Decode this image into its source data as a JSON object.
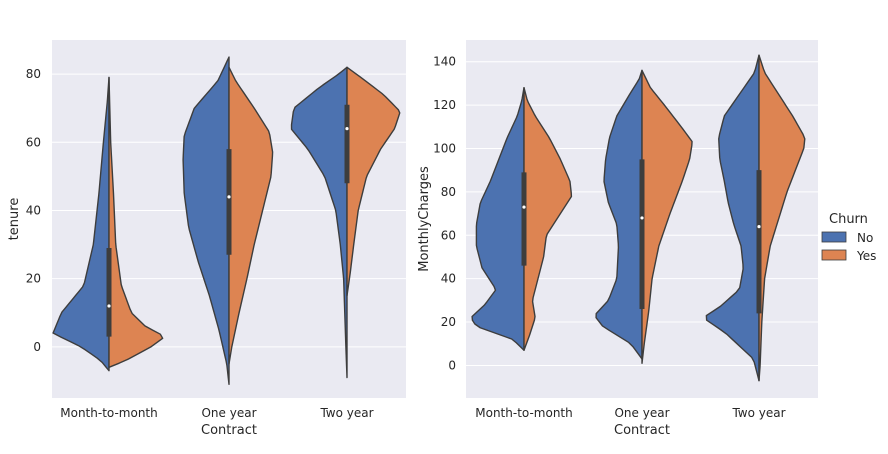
{
  "chart_data": [
    {
      "type": "violin",
      "split": true,
      "xlabel": "Contract",
      "ylabel": "tenure",
      "categories": [
        "Month-to-month",
        "One year",
        "Two year"
      ],
      "ylim": [
        -15,
        90
      ],
      "yticks": [
        0,
        20,
        40,
        60,
        80
      ],
      "grid": true,
      "series": [
        {
          "name": "No",
          "color": "#4C72B0",
          "range": [
            [
              -7,
              79
            ],
            [
              -11,
              85
            ],
            [
              -9,
              82
            ]
          ],
          "profile": [
            [
              [
                -7,
                0
              ],
              [
                -4,
                0.15
              ],
              [
                0,
                0.5
              ],
              [
                4,
                1.0
              ],
              [
                10,
                0.85
              ],
              [
                18,
                0.45
              ],
              [
                30,
                0.28
              ],
              [
                45,
                0.18
              ],
              [
                60,
                0.1
              ],
              [
                72,
                0.03
              ],
              [
                79,
                0
              ]
            ],
            [
              [
                -11,
                0
              ],
              [
                -5,
                0.04
              ],
              [
                5,
                0.18
              ],
              [
                15,
                0.35
              ],
              [
                25,
                0.55
              ],
              [
                35,
                0.72
              ],
              [
                45,
                0.8
              ],
              [
                55,
                0.82
              ],
              [
                62,
                0.8
              ],
              [
                70,
                0.62
              ],
              [
                78,
                0.2
              ],
              [
                85,
                0
              ]
            ],
            [
              [
                -9,
                0
              ],
              [
                0,
                0.02
              ],
              [
                10,
                0.04
              ],
              [
                20,
                0.06
              ],
              [
                30,
                0.12
              ],
              [
                40,
                0.2
              ],
              [
                50,
                0.4
              ],
              [
                58,
                0.7
              ],
              [
                64,
                1.0
              ],
              [
                70,
                0.95
              ],
              [
                76,
                0.5
              ],
              [
                80,
                0.15
              ],
              [
                82,
                0
              ]
            ]
          ]
        },
        {
          "name": "Yes",
          "color": "#DD8452",
          "range": [
            [
              -6,
              79
            ],
            [
              -5,
              82
            ],
            [
              15,
              82
            ]
          ],
          "profile": [
            [
              [
                -6,
                0
              ],
              [
                -4,
                0.3
              ],
              [
                0,
                0.75
              ],
              [
                3,
                1.0
              ],
              [
                6,
                0.65
              ],
              [
                10,
                0.4
              ],
              [
                18,
                0.22
              ],
              [
                30,
                0.12
              ],
              [
                45,
                0.08
              ],
              [
                60,
                0.03
              ],
              [
                79,
                0
              ]
            ],
            [
              [
                -5,
                0
              ],
              [
                0,
                0.05
              ],
              [
                10,
                0.18
              ],
              [
                20,
                0.32
              ],
              [
                30,
                0.45
              ],
              [
                40,
                0.6
              ],
              [
                50,
                0.75
              ],
              [
                57,
                0.78
              ],
              [
                63,
                0.72
              ],
              [
                70,
                0.45
              ],
              [
                78,
                0.12
              ],
              [
                82,
                0
              ]
            ],
            [
              [
                15,
                0
              ],
              [
                22,
                0.06
              ],
              [
                30,
                0.12
              ],
              [
                40,
                0.2
              ],
              [
                50,
                0.35
              ],
              [
                58,
                0.6
              ],
              [
                64,
                0.85
              ],
              [
                69,
                0.95
              ],
              [
                74,
                0.65
              ],
              [
                79,
                0.25
              ],
              [
                82,
                0
              ]
            ]
          ]
        }
      ],
      "box": [
        {
          "q1": 3,
          "median": 12,
          "q3": 29
        },
        {
          "q1": 27,
          "median": 44,
          "q3": 58
        },
        {
          "q1": 48,
          "median": 64,
          "q3": 71
        }
      ]
    },
    {
      "type": "violin",
      "split": true,
      "xlabel": "Contract",
      "ylabel": "MonthlyCharges",
      "categories": [
        "Month-to-month",
        "One year",
        "Two year"
      ],
      "ylim": [
        -15,
        150
      ],
      "yticks": [
        0,
        20,
        40,
        60,
        80,
        100,
        120,
        140
      ],
      "grid": true,
      "series": [
        {
          "name": "No",
          "color": "#4C72B0",
          "range": [
            [
              7,
              128
            ],
            [
              3,
              136
            ],
            [
              -7,
              143
            ]
          ],
          "profile": [
            [
              [
                7,
                0
              ],
              [
                12,
                0.2
              ],
              [
                18,
                0.85
              ],
              [
                22,
                0.95
              ],
              [
                28,
                0.7
              ],
              [
                35,
                0.5
              ],
              [
                45,
                0.75
              ],
              [
                55,
                0.85
              ],
              [
                65,
                0.85
              ],
              [
                75,
                0.78
              ],
              [
                85,
                0.6
              ],
              [
                95,
                0.45
              ],
              [
                105,
                0.3
              ],
              [
                115,
                0.12
              ],
              [
                122,
                0.04
              ],
              [
                128,
                0
              ]
            ],
            [
              [
                3,
                0
              ],
              [
                10,
                0.2
              ],
              [
                18,
                0.7
              ],
              [
                23,
                0.85
              ],
              [
                30,
                0.6
              ],
              [
                40,
                0.45
              ],
              [
                55,
                0.42
              ],
              [
                65,
                0.45
              ],
              [
                75,
                0.6
              ],
              [
                85,
                0.68
              ],
              [
                95,
                0.65
              ],
              [
                105,
                0.58
              ],
              [
                115,
                0.45
              ],
              [
                125,
                0.22
              ],
              [
                132,
                0.05
              ],
              [
                136,
                0
              ]
            ],
            [
              [
                -7,
                0
              ],
              [
                3,
                0.1
              ],
              [
                15,
                0.6
              ],
              [
                22,
                1.0
              ],
              [
                27,
                0.7
              ],
              [
                35,
                0.35
              ],
              [
                45,
                0.28
              ],
              [
                55,
                0.32
              ],
              [
                65,
                0.45
              ],
              [
                75,
                0.55
              ],
              [
                85,
                0.62
              ],
              [
                95,
                0.7
              ],
              [
                105,
                0.72
              ],
              [
                115,
                0.62
              ],
              [
                125,
                0.35
              ],
              [
                135,
                0.08
              ],
              [
                143,
                0
              ]
            ]
          ]
        },
        {
          "name": "Yes",
          "color": "#DD8452",
          "range": [
            [
              7,
              128
            ],
            [
              1,
              136
            ],
            [
              -7,
              143
            ]
          ],
          "profile": [
            [
              [
                7,
                0
              ],
              [
                14,
                0.1
              ],
              [
                22,
                0.2
              ],
              [
                30,
                0.15
              ],
              [
                40,
                0.25
              ],
              [
                50,
                0.35
              ],
              [
                60,
                0.4
              ],
              [
                70,
                0.65
              ],
              [
                78,
                0.85
              ],
              [
                85,
                0.82
              ],
              [
                95,
                0.65
              ],
              [
                105,
                0.45
              ],
              [
                115,
                0.2
              ],
              [
                122,
                0.06
              ],
              [
                128,
                0
              ]
            ],
            [
              [
                1,
                0
              ],
              [
                10,
                0.04
              ],
              [
                25,
                0.12
              ],
              [
                40,
                0.18
              ],
              [
                55,
                0.3
              ],
              [
                70,
                0.5
              ],
              [
                85,
                0.72
              ],
              [
                95,
                0.85
              ],
              [
                103,
                0.9
              ],
              [
                110,
                0.7
              ],
              [
                120,
                0.4
              ],
              [
                128,
                0.15
              ],
              [
                136,
                0
              ]
            ],
            [
              [
                -7,
                0
              ],
              [
                0,
                0.02
              ],
              [
                20,
                0.05
              ],
              [
                40,
                0.1
              ],
              [
                55,
                0.2
              ],
              [
                70,
                0.38
              ],
              [
                80,
                0.5
              ],
              [
                90,
                0.65
              ],
              [
                100,
                0.8
              ],
              [
                105,
                0.82
              ],
              [
                115,
                0.6
              ],
              [
                125,
                0.35
              ],
              [
                135,
                0.1
              ],
              [
                143,
                0
              ]
            ]
          ]
        }
      ],
      "box": [
        {
          "q1": 46,
          "median": 73,
          "q3": 89
        },
        {
          "q1": 26,
          "median": 68,
          "q3": 95
        },
        {
          "q1": 24,
          "median": 64,
          "q3": 90
        }
      ]
    }
  ],
  "legend": {
    "title": "Churn",
    "placement": "right",
    "items": [
      {
        "label": "No",
        "color": "#4C72B0"
      },
      {
        "label": "Yes",
        "color": "#DD8452"
      }
    ]
  }
}
